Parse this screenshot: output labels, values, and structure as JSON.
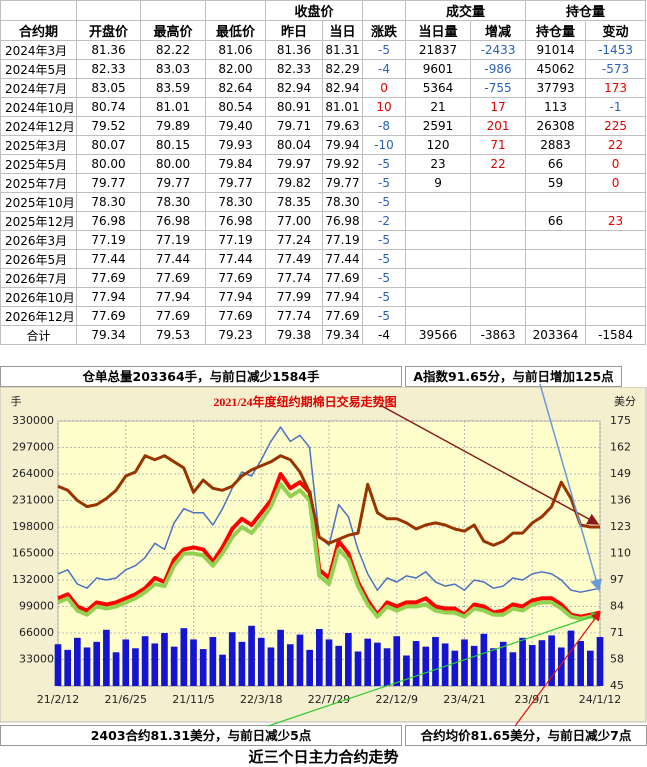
{
  "table": {
    "groups": [
      "收盘价",
      "成交量",
      "持仓量"
    ],
    "columns": [
      "合约期",
      "开盘价",
      "最高价",
      "最低价",
      "昨日",
      "当日",
      "涨跌",
      "当日量",
      "增减",
      "持仓量",
      "变动"
    ],
    "rows": [
      [
        "2024年3月",
        "81.36",
        "82.22",
        "81.06",
        "81.36",
        "81.31",
        "-5",
        "21837",
        "-2433",
        "91014",
        "-1453"
      ],
      [
        "2024年5月",
        "82.33",
        "83.03",
        "82.00",
        "82.33",
        "82.29",
        "-4",
        "9601",
        "-986",
        "45062",
        "-573"
      ],
      [
        "2024年7月",
        "83.05",
        "83.59",
        "82.64",
        "82.94",
        "82.94",
        "0",
        "5364",
        "-755",
        "37793",
        "173"
      ],
      [
        "2024年10月",
        "80.74",
        "81.01",
        "80.54",
        "80.91",
        "81.01",
        "10",
        "21",
        "17",
        "113",
        "-1"
      ],
      [
        "2024年12月",
        "79.52",
        "79.89",
        "79.40",
        "79.71",
        "79.63",
        "-8",
        "2591",
        "201",
        "26308",
        "225"
      ],
      [
        "2025年3月",
        "80.07",
        "80.15",
        "79.93",
        "80.04",
        "79.94",
        "-10",
        "120",
        "71",
        "2883",
        "22"
      ],
      [
        "2025年5月",
        "80.00",
        "80.00",
        "79.84",
        "79.97",
        "79.92",
        "-5",
        "23",
        "22",
        "66",
        "0"
      ],
      [
        "2025年7月",
        "79.77",
        "79.77",
        "79.77",
        "79.82",
        "79.77",
        "-5",
        "9",
        null,
        "59",
        "0"
      ],
      [
        "2025年10月",
        "78.30",
        "78.30",
        "78.30",
        "78.35",
        "78.30",
        "-5",
        null,
        null,
        null,
        null
      ],
      [
        "2025年12月",
        "76.98",
        "76.98",
        "76.98",
        "77.00",
        "76.98",
        "-2",
        null,
        null,
        "66",
        "23"
      ],
      [
        "2026年3月",
        "77.19",
        "77.19",
        "77.19",
        "77.24",
        "77.19",
        "-5",
        null,
        null,
        null,
        null
      ],
      [
        "2026年5月",
        "77.44",
        "77.44",
        "77.44",
        "77.49",
        "77.44",
        "-5",
        null,
        null,
        null,
        null
      ],
      [
        "2026年7月",
        "77.69",
        "77.69",
        "77.69",
        "77.74",
        "77.69",
        "-5",
        null,
        null,
        null,
        null
      ],
      [
        "2026年10月",
        "77.94",
        "77.94",
        "77.94",
        "77.99",
        "77.94",
        "-5",
        null,
        null,
        null,
        null
      ],
      [
        "2026年12月",
        "77.69",
        "77.69",
        "77.69",
        "77.74",
        "77.69",
        "-5",
        null,
        null,
        null,
        null
      ]
    ],
    "total": [
      "合计",
      "79.34",
      "79.53",
      "79.23",
      "79.38",
      "79.34",
      "-4",
      "39566",
      "-3863",
      "203364",
      "-1584"
    ]
  },
  "notes": {
    "warehouse": "仓单总量203364手，与前日减少1584手",
    "a_index": "A指数91.65分，与前日增加125点",
    "main_contract": "2403合约81.31美分，与前日减少5点",
    "average": "合约均价81.65美分，与前日减少7点",
    "footer": "近三个日主力合约走势"
  },
  "chart_data": {
    "type": "combo",
    "title": "2021/24年度纽约期棉日交易走势图",
    "y_label": "手",
    "y2_label": "美分",
    "x": [
      "21/2/12",
      "21/3/3",
      "21/3/22",
      "21/4/10",
      "21/4/29",
      "21/5/18",
      "21/6/6",
      "21/6/25",
      "21/7/14",
      "21/8/2",
      "21/8/21",
      "21/9/9",
      "21/9/28",
      "21/10/17",
      "21/11/5",
      "21/11/24",
      "21/12/13",
      "22/1/1",
      "22/1/20",
      "22/2/8",
      "22/2/27",
      "22/3/18",
      "22/4/6",
      "22/4/25",
      "22/5/14",
      "22/6/2",
      "22/6/21",
      "22/7/10",
      "22/7/29",
      "22/8/17",
      "22/9/5",
      "22/9/24",
      "22/10/13",
      "22/11/1",
      "22/11/20",
      "22/12/9",
      "22/12/28",
      "23/1/16",
      "23/2/4",
      "23/2/23",
      "23/3/14",
      "23/4/2",
      "23/4/21",
      "23/5/10",
      "23/5/29",
      "23/6/17",
      "23/7/6",
      "23/7/25",
      "23/8/13",
      "23/9/1",
      "23/9/20",
      "23/10/9",
      "23/10/28",
      "23/11/16",
      "23/12/5",
      "23/12/24",
      "24/1/12"
    ],
    "xlim": [
      "21/2/12",
      "24/1/12"
    ],
    "xticks": [
      "21/2/12",
      "21/6/25",
      "21/11/5",
      "22/3/18",
      "22/7/29",
      "22/12/9",
      "23/4/21",
      "23/9/1",
      "24/1/12"
    ],
    "ylim": [
      0,
      330000
    ],
    "yticks": [
      33000,
      66000,
      99000,
      132000,
      165000,
      198000,
      231000,
      264000,
      297000,
      330000
    ],
    "y2lim": [
      45,
      175
    ],
    "y2ticks": [
      45,
      58,
      71,
      84,
      97,
      110,
      123,
      136,
      149,
      162,
      175
    ],
    "grid": true,
    "series": [
      {
        "type": "bar",
        "axis": "y",
        "color": "#1414d2",
        "values": [
          52000,
          45000,
          60000,
          48000,
          55000,
          70000,
          42000,
          58000,
          47000,
          62000,
          53000,
          66000,
          49000,
          72000,
          58000,
          46000,
          61000,
          39000,
          67000,
          55000,
          75000,
          60000,
          48000,
          70000,
          52000,
          64000,
          45000,
          71000,
          58000,
          50000,
          66000,
          43000,
          59000,
          54000,
          47000,
          62000,
          38000,
          56000,
          49000,
          61000,
          53000,
          44000,
          58000,
          50000,
          65000,
          47000,
          55000,
          42000,
          60000,
          51000,
          57000,
          63000,
          48000,
          69000,
          56000,
          44000,
          61000
        ]
      },
      {
        "type": "line",
        "axis": "y2",
        "color": "#4a72c4",
        "width": 1.5,
        "values": [
          100,
          102,
          95,
          93,
          98,
          97,
          98,
          102,
          104,
          108,
          115,
          112,
          125,
          132,
          130,
          130,
          124,
          132,
          142,
          150,
          148,
          156,
          165,
          172,
          165,
          168,
          162,
          118,
          114,
          134,
          128,
          112,
          100,
          92,
          98,
          96,
          99,
          98,
          101,
          96,
          94,
          95,
          92,
          97,
          96,
          93,
          94,
          98,
          97,
          100,
          101,
          100,
          97,
          92,
          91,
          92,
          93
        ]
      },
      {
        "type": "line",
        "axis": "y2",
        "color": "#ff0000",
        "width": 4,
        "values": [
          88,
          90,
          84,
          82,
          86,
          85,
          86,
          88,
          90,
          93,
          98,
          96,
          107,
          112,
          113,
          112,
          106,
          113,
          122,
          127,
          124,
          130,
          136,
          149,
          142,
          145,
          140,
          102,
          98,
          116,
          110,
          96,
          87,
          80,
          86,
          84,
          86,
          86,
          88,
          84,
          83,
          83,
          80,
          85,
          84,
          81,
          82,
          85,
          84,
          87,
          88,
          88,
          85,
          80,
          79,
          80,
          81
        ]
      },
      {
        "type": "line",
        "axis": "y2",
        "color": "#92d050",
        "width": 4,
        "values": [
          86,
          88,
          82,
          80,
          84,
          83,
          84,
          86,
          88,
          91,
          95,
          94,
          104,
          110,
          110,
          109,
          104,
          110,
          118,
          123,
          120,
          126,
          133,
          144,
          138,
          141,
          136,
          99,
          95,
          112,
          107,
          94,
          85,
          79,
          84,
          82,
          84,
          84,
          85,
          82,
          81,
          81,
          79,
          83,
          82,
          80,
          80,
          83,
          82,
          85,
          86,
          86,
          83,
          79,
          78,
          79,
          80
        ]
      },
      {
        "type": "line",
        "axis": "y2",
        "color": "#993300",
        "width": 3,
        "values": [
          143,
          141,
          136,
          133,
          134,
          137,
          141,
          148,
          150,
          158,
          156,
          158,
          155,
          152,
          140,
          146,
          142,
          141,
          143,
          148,
          151,
          153,
          155,
          158,
          156,
          150,
          140,
          118,
          115,
          117,
          119,
          120,
          144,
          130,
          127,
          127,
          125,
          122,
          124,
          125,
          124,
          122,
          121,
          124,
          116,
          114,
          116,
          120,
          120,
          125,
          128,
          133,
          145,
          137,
          124,
          123,
          123
        ]
      }
    ]
  }
}
